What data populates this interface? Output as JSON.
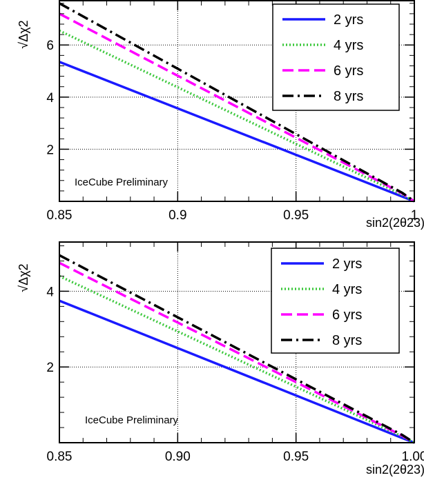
{
  "chart_data": [
    {
      "type": "line",
      "title": "",
      "xlabel": "sin2(2θ23)",
      "ylabel": "√Δχ2",
      "xlim": [
        0.85,
        1.0
      ],
      "ylim": [
        0,
        7.7
      ],
      "x_ticks": [
        0.85,
        0.9,
        0.95,
        1.0
      ],
      "x_tick_labels": [
        "0.85",
        "0.9",
        "0.95",
        "1"
      ],
      "y_ticks": [
        2,
        4,
        6
      ],
      "y_tick_labels": [
        "2",
        "4",
        "6"
      ],
      "grid": true,
      "legend_position": "top-right",
      "annotation": "IceCube Preliminary",
      "series": [
        {
          "name": "2 yrs",
          "color": "#1a1aff",
          "style": "solid",
          "x": [
            0.85,
            0.995,
            1.0
          ],
          "y": [
            5.35,
            0.18,
            0.0
          ]
        },
        {
          "name": "4 yrs",
          "color": "#3cc83c",
          "style": "dotted",
          "x": [
            0.85,
            0.995,
            1.0
          ],
          "y": [
            6.55,
            0.25,
            0.0
          ]
        },
        {
          "name": "6 yrs",
          "color": "#ff00ff",
          "style": "dashed",
          "x": [
            0.85,
            0.995,
            1.0
          ],
          "y": [
            7.2,
            0.3,
            0.0
          ]
        },
        {
          "name": "8 yrs",
          "color": "#000000",
          "style": "dashdot",
          "x": [
            0.85,
            0.995,
            1.0
          ],
          "y": [
            7.6,
            0.32,
            0.0
          ]
        }
      ]
    },
    {
      "type": "line",
      "title": "",
      "xlabel": "sin2(2θ23)",
      "ylabel": "√Δχ2",
      "xlim": [
        0.85,
        1.0
      ],
      "ylim": [
        0,
        5.3
      ],
      "x_ticks": [
        0.85,
        0.9,
        0.95,
        1.0
      ],
      "x_tick_labels": [
        "0.85",
        "0.90",
        "0.95",
        "1.00"
      ],
      "y_ticks": [
        2,
        4
      ],
      "y_tick_labels": [
        "2",
        "4"
      ],
      "grid": true,
      "legend_position": "top-right",
      "annotation": "IceCube Preliminary",
      "series": [
        {
          "name": "2 yrs",
          "color": "#1a1aff",
          "style": "solid",
          "x": [
            0.85,
            0.995,
            1.0
          ],
          "y": [
            3.75,
            0.12,
            0.0
          ]
        },
        {
          "name": "4 yrs",
          "color": "#3cc83c",
          "style": "dotted",
          "x": [
            0.85,
            0.995,
            1.0
          ],
          "y": [
            4.4,
            0.16,
            0.0
          ]
        },
        {
          "name": "6 yrs",
          "color": "#ff00ff",
          "style": "dashed",
          "x": [
            0.85,
            0.995,
            1.0
          ],
          "y": [
            4.75,
            0.18,
            0.0
          ]
        },
        {
          "name": "8 yrs",
          "color": "#000000",
          "style": "dashdot",
          "x": [
            0.85,
            0.995,
            1.0
          ],
          "y": [
            4.95,
            0.2,
            0.0
          ]
        }
      ]
    }
  ]
}
